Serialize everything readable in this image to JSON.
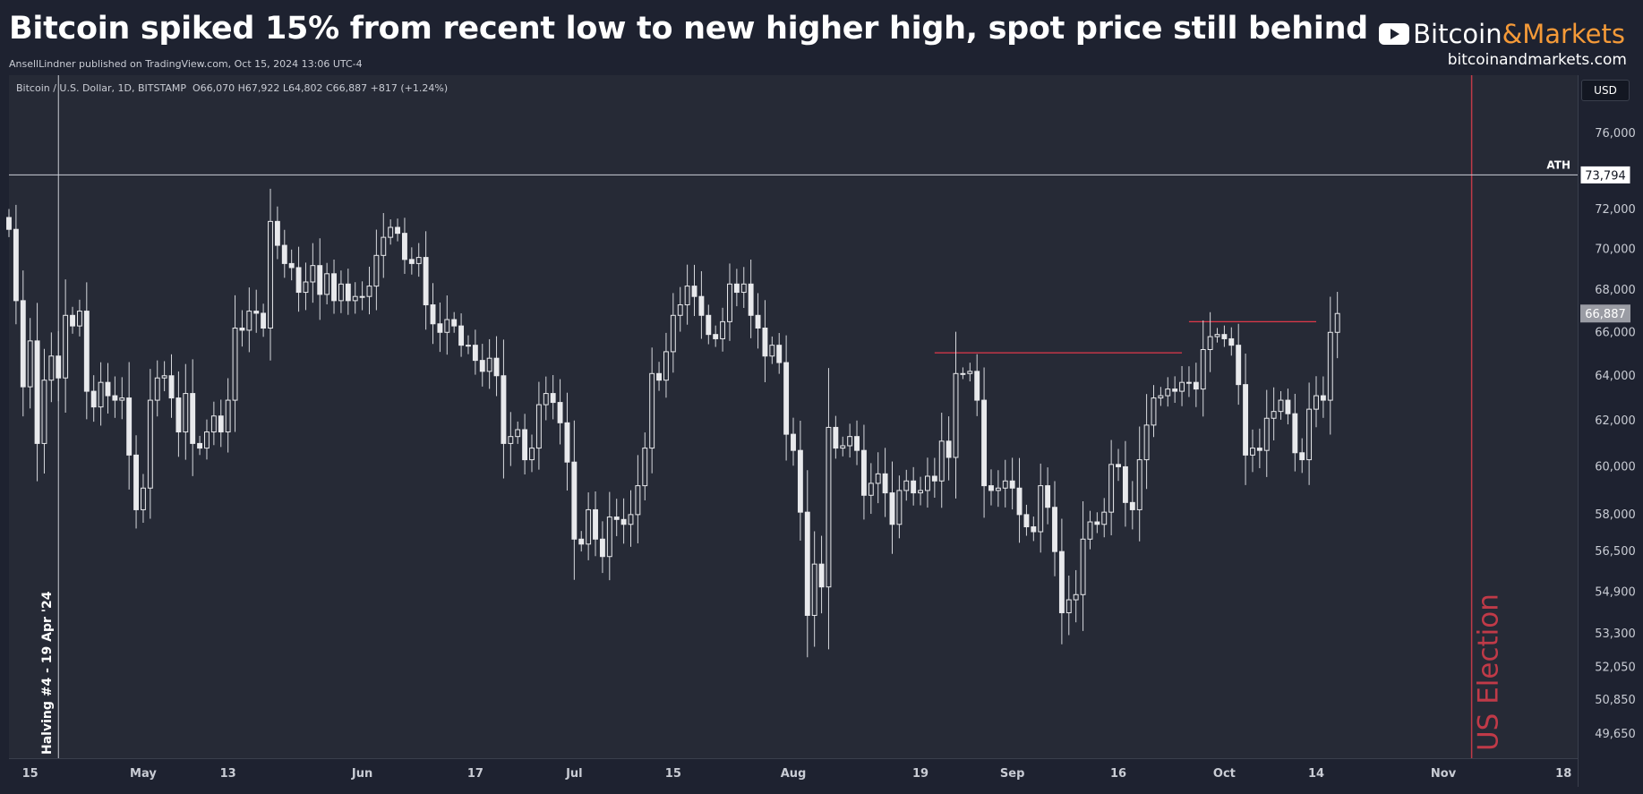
{
  "header": {
    "title": "Bitcoin spiked 15% from recent low to new higher high, spot price still behind",
    "byline": "AnsellLindner published on TradingView.com, Oct 15, 2024 13:06 UTC-4",
    "brand": {
      "name_main": "Bitcoin",
      "name_accent": "&Markets",
      "url": "bitcoinandmarkets.com",
      "icon": "youtube-play-icon"
    }
  },
  "legend": {
    "symbol": "Bitcoin / U.S. Dollar, 1D, BITSTAMP",
    "ohlc": "O66,070 H67,922 L64,802 C66,887 +817 (+1.24%)"
  },
  "currency_button": "USD",
  "colors": {
    "background": "#1e2230",
    "plot_background": "#262a36",
    "candle_body": "#e8e9ec",
    "wick": "#d6d8dd",
    "resistance": "#e0384a",
    "election": "#c03a48",
    "ath": "#cdd0d8"
  },
  "chart_data": {
    "type": "candlestick",
    "title": "",
    "xlabel": "",
    "ylabel": "",
    "ylim": [
      48800,
      79200
    ],
    "xlim": [
      "2024-04-12",
      "2024-11-20"
    ],
    "grid": false,
    "y_scale": "log",
    "y_ticks": [
      76000,
      72000,
      70000,
      68000,
      66000,
      64000,
      62000,
      60000,
      58000,
      56500,
      54900,
      53300,
      52050,
      50850,
      49650
    ],
    "x_ticks": [
      {
        "date": "2024-04-15",
        "label": "15"
      },
      {
        "date": "2024-05-01",
        "label": "May"
      },
      {
        "date": "2024-05-13",
        "label": "13"
      },
      {
        "date": "2024-06-01",
        "label": "Jun"
      },
      {
        "date": "2024-06-17",
        "label": "17"
      },
      {
        "date": "2024-07-01",
        "label": "Jul"
      },
      {
        "date": "2024-07-15",
        "label": "15"
      },
      {
        "date": "2024-08-01",
        "label": "Aug"
      },
      {
        "date": "2024-08-19",
        "label": "19"
      },
      {
        "date": "2024-09-01",
        "label": "Sep"
      },
      {
        "date": "2024-09-16",
        "label": "16"
      },
      {
        "date": "2024-10-01",
        "label": "Oct"
      },
      {
        "date": "2024-10-14",
        "label": "14"
      },
      {
        "date": "2024-11-01",
        "label": "Nov"
      },
      {
        "date": "2024-11-18",
        "label": "18"
      }
    ],
    "start_date": "2024-04-12",
    "closes": [
      71000,
      67500,
      63500,
      65600,
      61000,
      63800,
      64900,
      63900,
      66800,
      66300,
      67000,
      63300,
      62600,
      63700,
      63100,
      62900,
      63000,
      60500,
      58200,
      59100,
      62900,
      63900,
      64000,
      63000,
      61500,
      63200,
      61000,
      60800,
      61500,
      62200,
      61500,
      62900,
      66200,
      66100,
      67000,
      66900,
      66200,
      71400,
      70200,
      69300,
      69100,
      67900,
      68400,
      69200,
      67800,
      68800,
      67500,
      68300,
      67500,
      67700,
      67700,
      68200,
      69700,
      70600,
      71100,
      70800,
      69500,
      69300,
      69600,
      67300,
      66400,
      66000,
      66600,
      66300,
      65400,
      65400,
      64700,
      64200,
      64800,
      64000,
      61000,
      61300,
      61600,
      60300,
      60800,
      62700,
      63200,
      62800,
      61900,
      60200,
      57000,
      56800,
      58200,
      57000,
      56300,
      57900,
      57800,
      57600,
      58000,
      59200,
      60800,
      64100,
      63800,
      65100,
      66800,
      67300,
      68200,
      67700,
      66800,
      65900,
      65700,
      66500,
      68300,
      67900,
      68300,
      66800,
      66200,
      64900,
      65400,
      64600,
      61400,
      60700,
      58100,
      54000,
      56000,
      55100,
      61700,
      60800,
      60900,
      61300,
      60700,
      58800,
      59300,
      59700,
      58900,
      57600,
      59000,
      59400,
      58900,
      59000,
      59600,
      59400,
      61100,
      60400,
      64100,
      64100,
      64200,
      62900,
      59200,
      59000,
      59100,
      59400,
      59100,
      58000,
      57500,
      57300,
      59200,
      58300,
      56500,
      54100,
      54600,
      54800,
      57000,
      57700,
      57600,
      58100,
      60100,
      60000,
      58500,
      58200,
      60300,
      61800,
      63000,
      63100,
      63400,
      63300,
      63700,
      63700,
      63400,
      65200,
      65800,
      65900,
      65700,
      65400,
      63600,
      60500,
      60800,
      60700,
      62100,
      62400,
      62900,
      62300,
      60600,
      60300,
      62500,
      63100,
      62900,
      66000,
      66887
    ]
  },
  "axes": {
    "ath_label": "ATH",
    "ath_price": 73794,
    "ath_value_label": "73,794",
    "last_price": 66887,
    "last_value_label": "66,887"
  },
  "annotations": {
    "halving": {
      "date": "2024-04-19",
      "label": "Halving #4 - 19 Apr '24"
    },
    "election": {
      "date": "2024-11-05",
      "label": "US Election"
    },
    "resistance_lines": [
      {
        "price": 65050,
        "from": "2024-08-21",
        "to": "2024-09-25"
      },
      {
        "price": 66500,
        "from": "2024-09-26",
        "to": "2024-10-14"
      }
    ]
  }
}
